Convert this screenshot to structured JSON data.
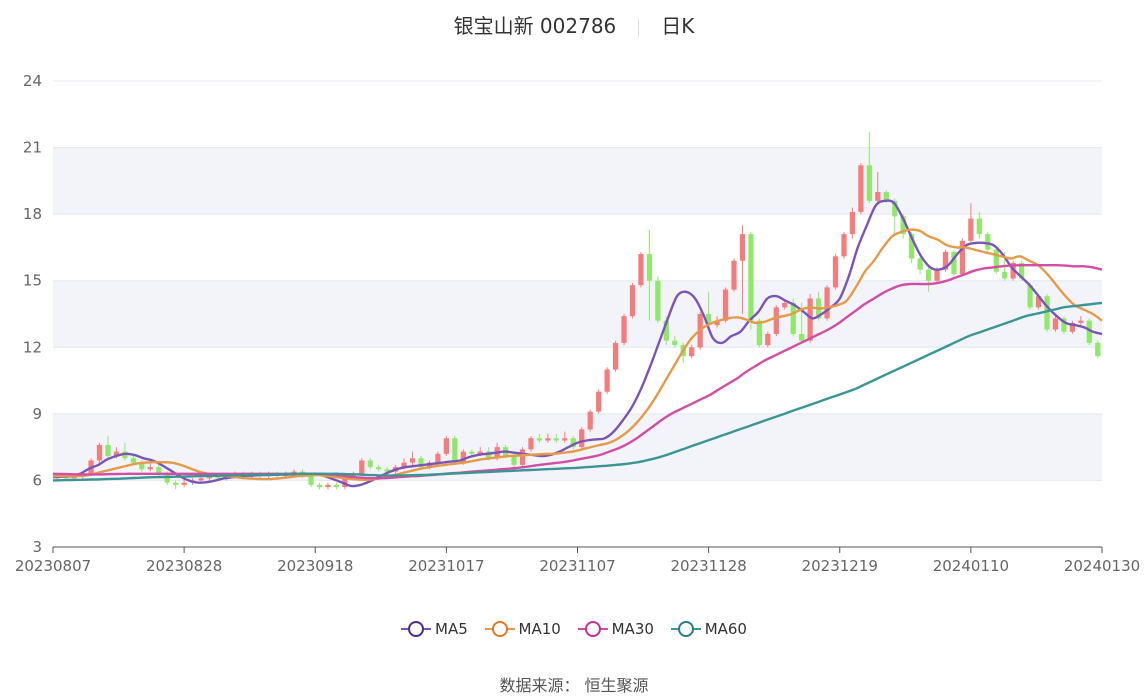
{
  "header": {
    "name": "银宝山新 002786",
    "period": "日K"
  },
  "source": "数据来源：  恒生聚源",
  "colors": {
    "up": "#f47c7c",
    "down": "#8fe86a",
    "MA5": "#7b55b6",
    "MA10": "#e59a4a",
    "MA30": "#d24da4",
    "MA60": "#3a9595",
    "band": "#f2f4fa",
    "grid": "#e4e7ee",
    "axis": "#666666"
  },
  "chart_data": {
    "type": "candlestick",
    "ylim": [
      3,
      24
    ],
    "yticks": [
      3,
      6,
      9,
      12,
      15,
      18,
      21,
      24
    ],
    "xtick_labels": [
      "20230807",
      "20230828",
      "20230918",
      "20231017",
      "20231107",
      "20231128",
      "20231219",
      "20240110",
      "20240130"
    ],
    "grid": true,
    "legend": {
      "position": "bottom",
      "entries": [
        "MA5",
        "MA10",
        "MA30",
        "MA60"
      ]
    },
    "candles": [
      [
        6.1,
        6.2,
        6.0,
        6.3
      ],
      [
        6.2,
        6.1,
        6.0,
        6.3
      ],
      [
        6.1,
        6.2,
        6.0,
        6.3
      ],
      [
        6.2,
        6.3,
        6.1,
        6.4
      ],
      [
        6.3,
        6.9,
        6.2,
        7.0
      ],
      [
        6.9,
        7.6,
        6.8,
        7.7
      ],
      [
        7.6,
        7.1,
        7.0,
        8.0
      ],
      [
        7.1,
        7.3,
        7.0,
        7.5
      ],
      [
        7.3,
        7.0,
        6.9,
        7.7
      ],
      [
        7.0,
        6.8,
        6.7,
        7.1
      ],
      [
        6.8,
        6.5,
        6.4,
        6.9
      ],
      [
        6.5,
        6.6,
        6.4,
        6.8
      ],
      [
        6.6,
        6.3,
        6.2,
        6.7
      ],
      [
        6.3,
        5.9,
        5.8,
        6.4
      ],
      [
        5.9,
        5.8,
        5.6,
        6.0
      ],
      [
        5.8,
        5.9,
        5.7,
        6.1
      ],
      [
        5.9,
        6.0,
        5.8,
        6.1
      ],
      [
        6.0,
        6.1,
        5.9,
        6.2
      ],
      [
        6.1,
        6.2,
        6.0,
        6.3
      ],
      [
        6.2,
        6.1,
        6.0,
        6.3
      ],
      [
        6.1,
        6.2,
        6.0,
        6.3
      ],
      [
        6.2,
        6.3,
        6.1,
        6.4
      ],
      [
        6.3,
        6.2,
        6.1,
        6.4
      ],
      [
        6.2,
        6.3,
        6.1,
        6.4
      ],
      [
        6.3,
        6.2,
        6.1,
        6.4
      ],
      [
        6.2,
        6.3,
        6.1,
        6.4
      ],
      [
        6.3,
        6.2,
        6.1,
        6.4
      ],
      [
        6.2,
        6.3,
        6.1,
        6.4
      ],
      [
        6.3,
        6.4,
        6.2,
        6.5
      ],
      [
        6.4,
        6.2,
        6.1,
        6.5
      ],
      [
        6.2,
        5.8,
        5.7,
        6.3
      ],
      [
        5.8,
        5.7,
        5.6,
        5.9
      ],
      [
        5.7,
        5.8,
        5.6,
        5.9
      ],
      [
        5.8,
        5.7,
        5.6,
        5.9
      ],
      [
        5.7,
        6.1,
        5.6,
        6.2
      ],
      [
        6.1,
        6.3,
        6.0,
        6.4
      ],
      [
        6.3,
        6.9,
        6.2,
        7.0
      ],
      [
        6.9,
        6.6,
        6.5,
        7.0
      ],
      [
        6.6,
        6.5,
        6.4,
        6.7
      ],
      [
        6.5,
        6.4,
        6.3,
        6.6
      ],
      [
        6.4,
        6.6,
        6.3,
        6.7
      ],
      [
        6.6,
        6.8,
        6.5,
        7.0
      ],
      [
        6.8,
        7.0,
        6.7,
        7.3
      ],
      [
        7.0,
        6.6,
        6.5,
        7.1
      ],
      [
        6.6,
        6.8,
        6.5,
        6.9
      ],
      [
        6.8,
        7.2,
        6.7,
        7.3
      ],
      [
        7.2,
        7.9,
        7.1,
        8.0
      ],
      [
        7.9,
        6.8,
        6.7,
        8.0
      ],
      [
        6.8,
        7.3,
        6.7,
        7.4
      ],
      [
        7.3,
        7.2,
        7.1,
        7.4
      ],
      [
        7.2,
        7.3,
        7.1,
        7.5
      ],
      [
        7.3,
        7.0,
        6.9,
        7.5
      ],
      [
        7.0,
        7.5,
        6.9,
        7.7
      ],
      [
        7.5,
        7.1,
        7.0,
        7.6
      ],
      [
        7.1,
        6.7,
        6.6,
        7.2
      ],
      [
        6.7,
        7.4,
        6.6,
        7.5
      ],
      [
        7.4,
        7.9,
        7.3,
        8.0
      ],
      [
        7.9,
        7.8,
        7.7,
        8.1
      ],
      [
        7.8,
        7.9,
        7.7,
        8.1
      ],
      [
        7.9,
        7.8,
        7.7,
        8.1
      ],
      [
        7.8,
        7.9,
        7.7,
        8.2
      ],
      [
        7.9,
        7.5,
        7.4,
        8.0
      ],
      [
        7.5,
        8.3,
        7.4,
        8.4
      ],
      [
        8.3,
        9.1,
        8.2,
        9.2
      ],
      [
        9.1,
        10.0,
        9.0,
        10.1
      ],
      [
        10.0,
        11.0,
        9.9,
        11.1
      ],
      [
        11.0,
        12.2,
        10.9,
        12.3
      ],
      [
        12.2,
        13.4,
        12.1,
        13.5
      ],
      [
        13.4,
        14.8,
        13.3,
        14.9
      ],
      [
        14.8,
        16.2,
        14.7,
        16.3
      ],
      [
        16.2,
        15.0,
        13.2,
        17.3
      ],
      [
        15.0,
        13.2,
        13.1,
        15.2
      ],
      [
        13.2,
        12.3,
        12.1,
        13.4
      ],
      [
        12.3,
        12.1,
        12.0,
        12.5
      ],
      [
        12.1,
        11.6,
        11.3,
        12.2
      ],
      [
        11.6,
        12.0,
        11.5,
        12.1
      ],
      [
        12.0,
        13.5,
        11.9,
        13.6
      ],
      [
        13.5,
        13.0,
        12.9,
        14.5
      ],
      [
        13.0,
        13.2,
        12.9,
        13.4
      ],
      [
        13.2,
        14.6,
        13.1,
        14.7
      ],
      [
        14.6,
        15.9,
        14.5,
        16.0
      ],
      [
        15.9,
        17.1,
        13.5,
        17.5
      ],
      [
        17.1,
        13.2,
        12.8,
        17.2
      ],
      [
        13.2,
        12.1,
        12.0,
        13.3
      ],
      [
        12.1,
        12.6,
        12.0,
        12.7
      ],
      [
        12.6,
        13.8,
        12.5,
        13.9
      ],
      [
        13.8,
        14.0,
        13.7,
        14.1
      ],
      [
        14.0,
        12.6,
        12.5,
        14.2
      ],
      [
        12.6,
        12.3,
        12.2,
        14.0
      ],
      [
        12.3,
        14.2,
        12.2,
        14.4
      ],
      [
        14.2,
        13.3,
        13.2,
        14.5
      ],
      [
        13.3,
        14.7,
        13.2,
        14.8
      ],
      [
        14.7,
        16.1,
        14.6,
        16.2
      ],
      [
        16.1,
        17.1,
        16.0,
        17.2
      ],
      [
        17.1,
        18.1,
        16.9,
        18.3
      ],
      [
        18.1,
        20.2,
        18.0,
        20.3
      ],
      [
        20.2,
        18.6,
        18.5,
        21.7
      ],
      [
        18.6,
        19.0,
        18.5,
        19.9
      ],
      [
        19.0,
        18.6,
        18.5,
        19.1
      ],
      [
        18.6,
        17.9,
        17.0,
        18.7
      ],
      [
        17.9,
        17.1,
        16.9,
        18.0
      ],
      [
        17.1,
        16.0,
        15.8,
        17.2
      ],
      [
        16.0,
        15.5,
        15.3,
        16.1
      ],
      [
        15.5,
        15.0,
        14.5,
        15.6
      ],
      [
        15.0,
        15.5,
        14.9,
        15.6
      ],
      [
        15.5,
        16.3,
        15.4,
        16.4
      ],
      [
        16.3,
        15.3,
        15.2,
        16.4
      ],
      [
        15.3,
        16.8,
        15.2,
        16.9
      ],
      [
        16.8,
        17.8,
        16.7,
        18.5
      ],
      [
        17.8,
        17.1,
        16.9,
        18.1
      ],
      [
        17.1,
        16.4,
        16.3,
        17.2
      ],
      [
        16.4,
        15.4,
        15.3,
        16.5
      ],
      [
        15.4,
        15.1,
        15.0,
        16.3
      ],
      [
        15.1,
        15.8,
        15.0,
        15.9
      ],
      [
        15.8,
        15.1,
        15.0,
        15.9
      ],
      [
        14.8,
        13.8,
        13.7,
        14.9
      ],
      [
        13.8,
        14.3,
        13.7,
        14.4
      ],
      [
        14.3,
        12.8,
        12.7,
        14.4
      ],
      [
        12.8,
        13.3,
        12.7,
        13.4
      ],
      [
        13.3,
        12.7,
        12.6,
        13.4
      ],
      [
        12.7,
        13.1,
        12.6,
        13.2
      ],
      [
        13.1,
        13.2,
        13.0,
        13.4
      ],
      [
        13.2,
        12.2,
        12.1,
        13.3
      ],
      [
        12.2,
        11.6,
        11.5,
        12.3
      ]
    ],
    "series": [
      {
        "name": "MA5",
        "values": [
          6.15,
          6.17,
          6.19,
          6.3,
          6.53,
          6.7,
          6.95,
          7.1,
          7.2,
          7.15,
          7.0,
          6.9,
          6.7,
          6.45,
          6.2,
          6.0,
          5.9,
          5.92,
          6.0,
          6.1,
          6.15,
          6.2,
          6.22,
          6.24,
          6.25,
          6.26,
          6.27,
          6.28,
          6.29,
          6.3,
          6.2,
          6.05,
          5.9,
          5.75,
          5.8,
          5.95,
          6.15,
          6.35,
          6.5,
          6.6,
          6.65,
          6.7,
          6.75,
          6.8,
          6.85,
          6.9,
          7.05,
          7.15,
          7.2,
          7.25,
          7.3,
          7.25,
          7.2,
          7.15,
          7.1,
          7.15,
          7.3,
          7.5,
          7.7,
          7.8,
          7.85,
          7.9,
          8.2,
          8.7,
          9.3,
          10.1,
          11.1,
          12.2,
          13.3,
          14.3,
          14.5,
          14.2,
          13.4,
          12.4,
          12.2,
          12.5,
          12.7,
          13.2,
          13.6,
          14.2,
          14.3,
          14.1,
          13.9,
          13.6,
          13.3,
          13.5,
          13.8,
          14.2,
          15.2,
          16.5,
          17.5,
          18.4,
          18.6,
          18.5,
          17.8,
          16.9,
          16.1,
          15.6,
          15.5,
          15.7,
          16.2,
          16.6,
          16.7,
          16.7,
          16.6,
          16.2,
          15.6,
          15.2,
          14.8,
          14.3,
          13.8,
          13.4,
          13.1,
          13.0,
          12.9,
          12.7,
          12.6
        ]
      },
      {
        "name": "MA10",
        "values": [
          6.2,
          6.2,
          6.2,
          6.2,
          6.25,
          6.35,
          6.45,
          6.55,
          6.65,
          6.75,
          6.8,
          6.82,
          6.82,
          6.8,
          6.7,
          6.55,
          6.4,
          6.3,
          6.25,
          6.2,
          6.15,
          6.1,
          6.08,
          6.06,
          6.07,
          6.1,
          6.15,
          6.2,
          6.22,
          6.24,
          6.2,
          6.15,
          6.1,
          6.05,
          6.03,
          6.05,
          6.1,
          6.2,
          6.3,
          6.4,
          6.5,
          6.58,
          6.65,
          6.7,
          6.75,
          6.8,
          6.87,
          6.95,
          7.0,
          7.05,
          7.1,
          7.12,
          7.15,
          7.17,
          7.19,
          7.2,
          7.25,
          7.3,
          7.4,
          7.5,
          7.6,
          7.7,
          7.9,
          8.2,
          8.6,
          9.1,
          9.7,
          10.4,
          11.1,
          11.8,
          12.4,
          12.8,
          13.05,
          13.2,
          13.3,
          13.35,
          13.25,
          13.1,
          13.15,
          13.3,
          13.4,
          13.5,
          13.7,
          13.8,
          13.75,
          13.8,
          13.9,
          14.1,
          14.7,
          15.4,
          15.9,
          16.5,
          17.0,
          17.2,
          17.3,
          17.25,
          17.0,
          16.85,
          16.6,
          16.5,
          16.5,
          16.4,
          16.3,
          16.2,
          16.1,
          16.0,
          16.1,
          15.9,
          15.7,
          15.3,
          14.8,
          14.3,
          13.9,
          13.7,
          13.5,
          13.2
        ]
      },
      {
        "name": "MA30",
        "values": [
          6.3,
          6.29,
          6.28,
          6.27,
          6.27,
          6.27,
          6.28,
          6.29,
          6.3,
          6.3,
          6.3,
          6.3,
          6.3,
          6.3,
          6.3,
          6.3,
          6.3,
          6.3,
          6.3,
          6.3,
          6.3,
          6.3,
          6.3,
          6.3,
          6.3,
          6.3,
          6.3,
          6.3,
          6.3,
          6.3,
          6.28,
          6.25,
          6.2,
          6.15,
          6.12,
          6.1,
          6.1,
          6.12,
          6.15,
          6.18,
          6.2,
          6.23,
          6.26,
          6.3,
          6.33,
          6.36,
          6.4,
          6.43,
          6.46,
          6.5,
          6.53,
          6.57,
          6.62,
          6.68,
          6.73,
          6.78,
          6.83,
          6.9,
          6.98,
          7.06,
          7.15,
          7.3,
          7.45,
          7.65,
          7.9,
          8.2,
          8.5,
          8.8,
          9.05,
          9.25,
          9.45,
          9.65,
          9.85,
          10.1,
          10.35,
          10.6,
          10.9,
          11.15,
          11.4,
          11.6,
          11.8,
          12.0,
          12.2,
          12.4,
          12.6,
          12.8,
          13.05,
          13.35,
          13.65,
          13.95,
          14.2,
          14.45,
          14.65,
          14.8,
          14.85,
          14.85,
          14.85,
          14.9,
          15.0,
          15.15,
          15.3,
          15.45,
          15.55,
          15.6,
          15.65,
          15.68,
          15.7,
          15.7,
          15.7,
          15.7,
          15.7,
          15.68,
          15.65,
          15.65,
          15.6,
          15.5
        ]
      },
      {
        "name": "MA60",
        "values": [
          6.0,
          6.01,
          6.02,
          6.03,
          6.04,
          6.05,
          6.07,
          6.08,
          6.1,
          6.12,
          6.14,
          6.15,
          6.16,
          6.17,
          6.18,
          6.19,
          6.2,
          6.21,
          6.22,
          6.23,
          6.24,
          6.25,
          6.26,
          6.27,
          6.28,
          6.29,
          6.3,
          6.3,
          6.3,
          6.3,
          6.3,
          6.28,
          6.27,
          6.25,
          6.23,
          6.22,
          6.22,
          6.23,
          6.24,
          6.25,
          6.27,
          6.29,
          6.31,
          6.33,
          6.35,
          6.37,
          6.39,
          6.41,
          6.43,
          6.45,
          6.47,
          6.49,
          6.51,
          6.53,
          6.55,
          6.57,
          6.6,
          6.63,
          6.66,
          6.7,
          6.74,
          6.8,
          6.88,
          6.98,
          7.1,
          7.25,
          7.4,
          7.55,
          7.7,
          7.85,
          8.0,
          8.15,
          8.3,
          8.45,
          8.6,
          8.75,
          8.9,
          9.05,
          9.2,
          9.35,
          9.5,
          9.65,
          9.8,
          9.95,
          10.1,
          10.3,
          10.5,
          10.7,
          10.9,
          11.1,
          11.3,
          11.5,
          11.7,
          11.9,
          12.1,
          12.3,
          12.5,
          12.65,
          12.8,
          12.95,
          13.1,
          13.25,
          13.4,
          13.5,
          13.6,
          13.7,
          13.8,
          13.85,
          13.9,
          13.95,
          14.0
        ]
      }
    ]
  }
}
